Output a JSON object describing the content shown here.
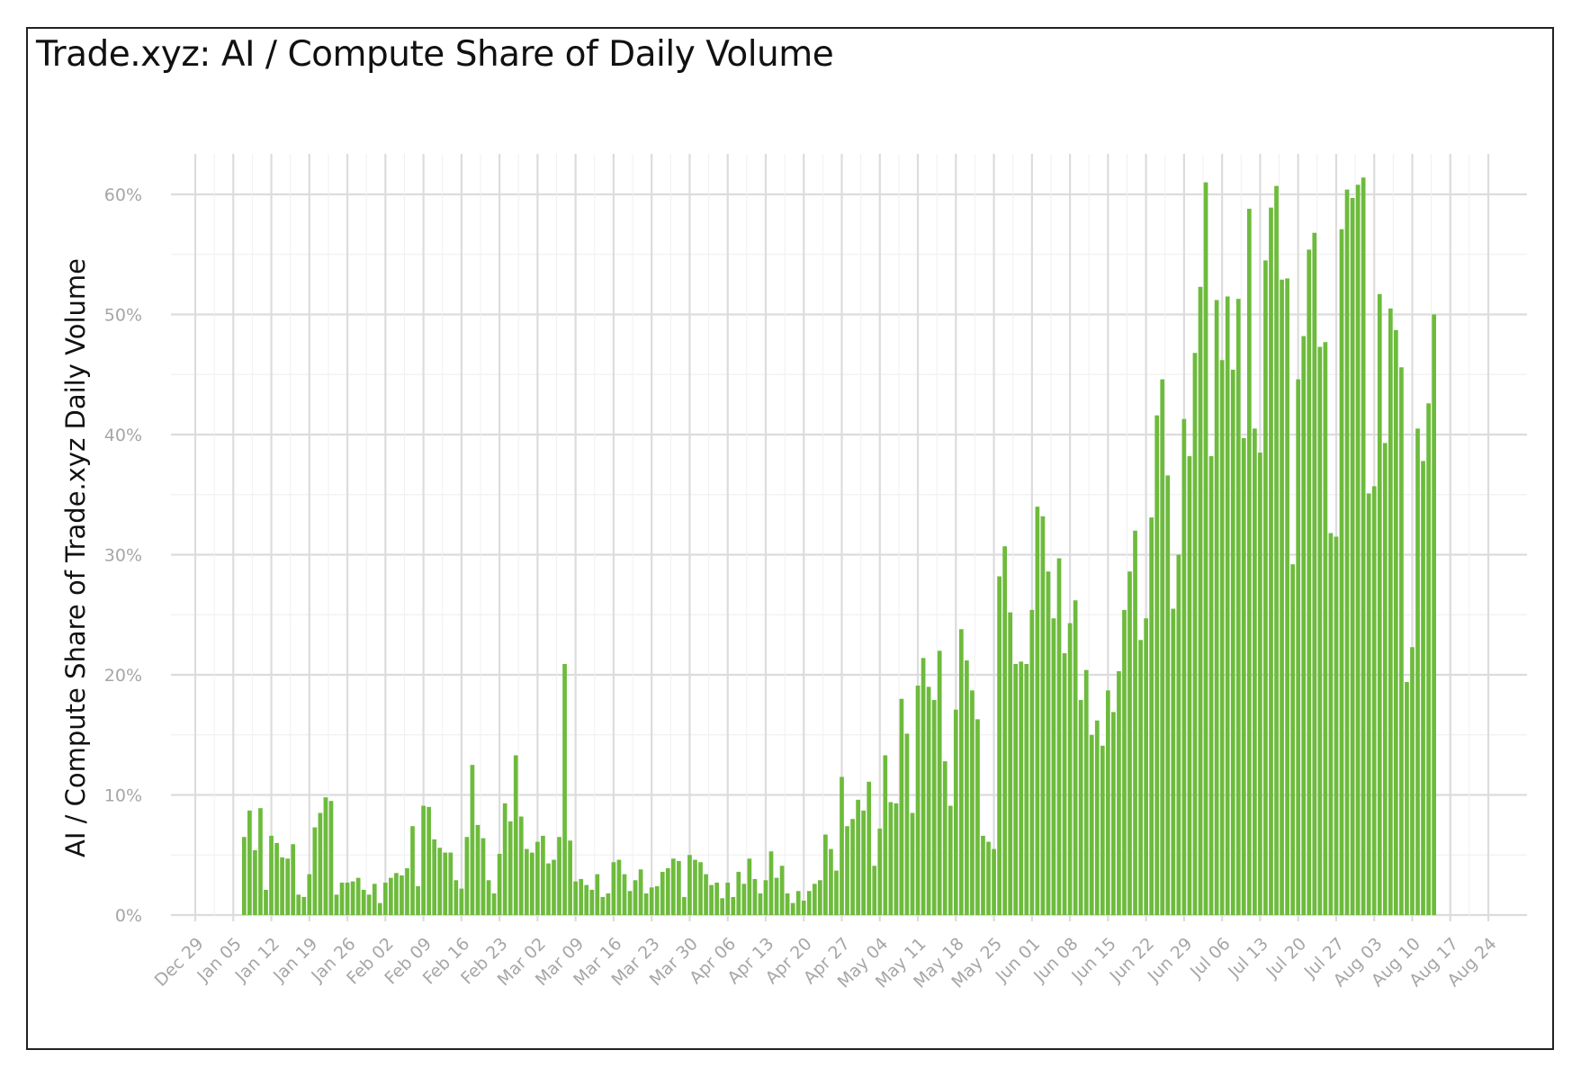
{
  "chart_data": {
    "type": "bar",
    "title": "Trade.xyz: AI / Compute Share of Daily Volume",
    "ylabel": "AI / Compute Share of Trade.xyz Daily Volume",
    "xlabel": "",
    "ylim": [
      0,
      0.62
    ],
    "y_ticks": [
      "0%",
      "10%",
      "20%",
      "30%",
      "40%",
      "50%",
      "60%"
    ],
    "x_ticks": [
      "Dec 29",
      "Jan 05",
      "Jan 12",
      "Jan 19",
      "Jan 26",
      "Feb 02",
      "Feb 09",
      "Feb 16",
      "Feb 23",
      "Mar 02",
      "Mar 09",
      "Mar 16",
      "Mar 23",
      "Mar 30",
      "Apr 06",
      "Apr 13",
      "Apr 20",
      "Apr 27",
      "May 04",
      "May 11",
      "May 18",
      "May 25",
      "Jun 01",
      "Jun 08",
      "Jun 15",
      "Jun 22",
      "Jun 29",
      "Jul 06",
      "Jul 13",
      "Jul 20",
      "Jul 27",
      "Aug 03",
      "Aug 10",
      "Aug 17",
      "Aug 24"
    ],
    "start_date": "Jan 07",
    "end_date": "Aug 13",
    "grid": true,
    "bar_color": "#6dbb3c",
    "values": [
      0.065,
      0.087,
      0.054,
      0.089,
      0.021,
      0.066,
      0.06,
      0.048,
      0.047,
      0.059,
      0.017,
      0.015,
      0.034,
      0.073,
      0.085,
      0.098,
      0.095,
      0.017,
      0.027,
      0.027,
      0.028,
      0.031,
      0.021,
      0.017,
      0.026,
      0.01,
      0.027,
      0.031,
      0.035,
      0.033,
      0.039,
      0.074,
      0.024,
      0.091,
      0.09,
      0.063,
      0.056,
      0.052,
      0.052,
      0.029,
      0.022,
      0.065,
      0.125,
      0.075,
      0.064,
      0.029,
      0.018,
      0.051,
      0.093,
      0.078,
      0.133,
      0.082,
      0.055,
      0.052,
      0.061,
      0.066,
      0.043,
      0.046,
      0.065,
      0.209,
      0.062,
      0.028,
      0.03,
      0.025,
      0.021,
      0.034,
      0.015,
      0.018,
      0.044,
      0.046,
      0.034,
      0.02,
      0.029,
      0.038,
      0.018,
      0.023,
      0.024,
      0.036,
      0.039,
      0.047,
      0.045,
      0.015,
      0.05,
      0.046,
      0.044,
      0.034,
      0.025,
      0.027,
      0.014,
      0.027,
      0.015,
      0.036,
      0.026,
      0.047,
      0.03,
      0.018,
      0.029,
      0.053,
      0.031,
      0.041,
      0.018,
      0.01,
      0.02,
      0.012,
      0.02,
      0.026,
      0.029,
      0.067,
      0.055,
      0.037,
      0.115,
      0.074,
      0.08,
      0.096,
      0.087,
      0.111,
      0.041,
      0.072,
      0.133,
      0.094,
      0.093,
      0.18,
      0.151,
      0.085,
      0.191,
      0.214,
      0.19,
      0.179,
      0.22,
      0.128,
      0.091,
      0.171,
      0.238,
      0.212,
      0.187,
      0.163,
      0.066,
      0.061,
      0.055,
      0.282,
      0.307,
      0.252,
      0.209,
      0.211,
      0.209,
      0.254,
      0.34,
      0.332,
      0.286,
      0.247,
      0.297,
      0.218,
      0.243,
      0.262,
      0.179,
      0.204,
      0.15,
      0.162,
      0.141,
      0.187,
      0.169,
      0.203,
      0.254,
      0.286,
      0.32,
      0.229,
      0.247,
      0.331,
      0.416,
      0.446,
      0.366,
      0.255,
      0.3,
      0.413,
      0.382,
      0.468,
      0.523,
      0.61,
      0.382,
      0.512,
      0.462,
      0.515,
      0.454,
      0.513,
      0.397,
      0.588,
      0.405,
      0.385,
      0.545,
      0.589,
      0.607,
      0.529,
      0.53,
      0.292,
      0.446,
      0.482,
      0.554,
      0.568,
      0.473,
      0.477,
      0.318,
      0.315,
      0.571,
      0.604,
      0.597,
      0.608,
      0.614,
      0.351,
      0.357,
      0.517,
      0.393,
      0.505,
      0.487,
      0.456,
      0.194,
      0.223,
      0.405,
      0.378,
      0.426,
      0.5
    ]
  }
}
